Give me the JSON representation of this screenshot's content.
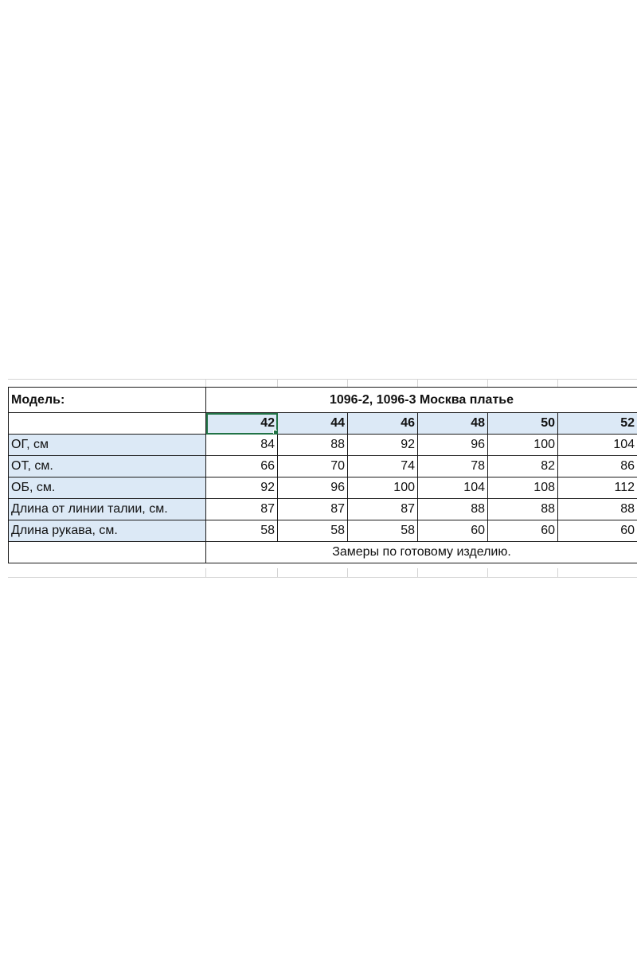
{
  "table": {
    "model_label": "Модель:",
    "title": "1096-2, 1096-3 Москва платье",
    "sizes": [
      "42",
      "44",
      "46",
      "48",
      "50",
      "52"
    ],
    "rows": [
      {
        "label": "ОГ, см",
        "values": [
          "84",
          "88",
          "92",
          "96",
          "100",
          "104"
        ]
      },
      {
        "label": "ОТ, см.",
        "values": [
          "66",
          "70",
          "74",
          "78",
          "82",
          "86"
        ]
      },
      {
        "label": "ОБ, см.",
        "values": [
          "92",
          "96",
          "100",
          "104",
          "108",
          "112"
        ]
      },
      {
        "label": "Длина от линии талии, см.",
        "values": [
          "87",
          "87",
          "87",
          "88",
          "88",
          "88"
        ]
      },
      {
        "label": "Длина рукава, см.",
        "values": [
          "58",
          "58",
          "58",
          "60",
          "60",
          "60"
        ]
      }
    ],
    "note": "Замеры по готовому изделию."
  },
  "colors": {
    "header_shade": "#dce9f6",
    "selection": "#217346",
    "border": "#1a1a1a"
  }
}
